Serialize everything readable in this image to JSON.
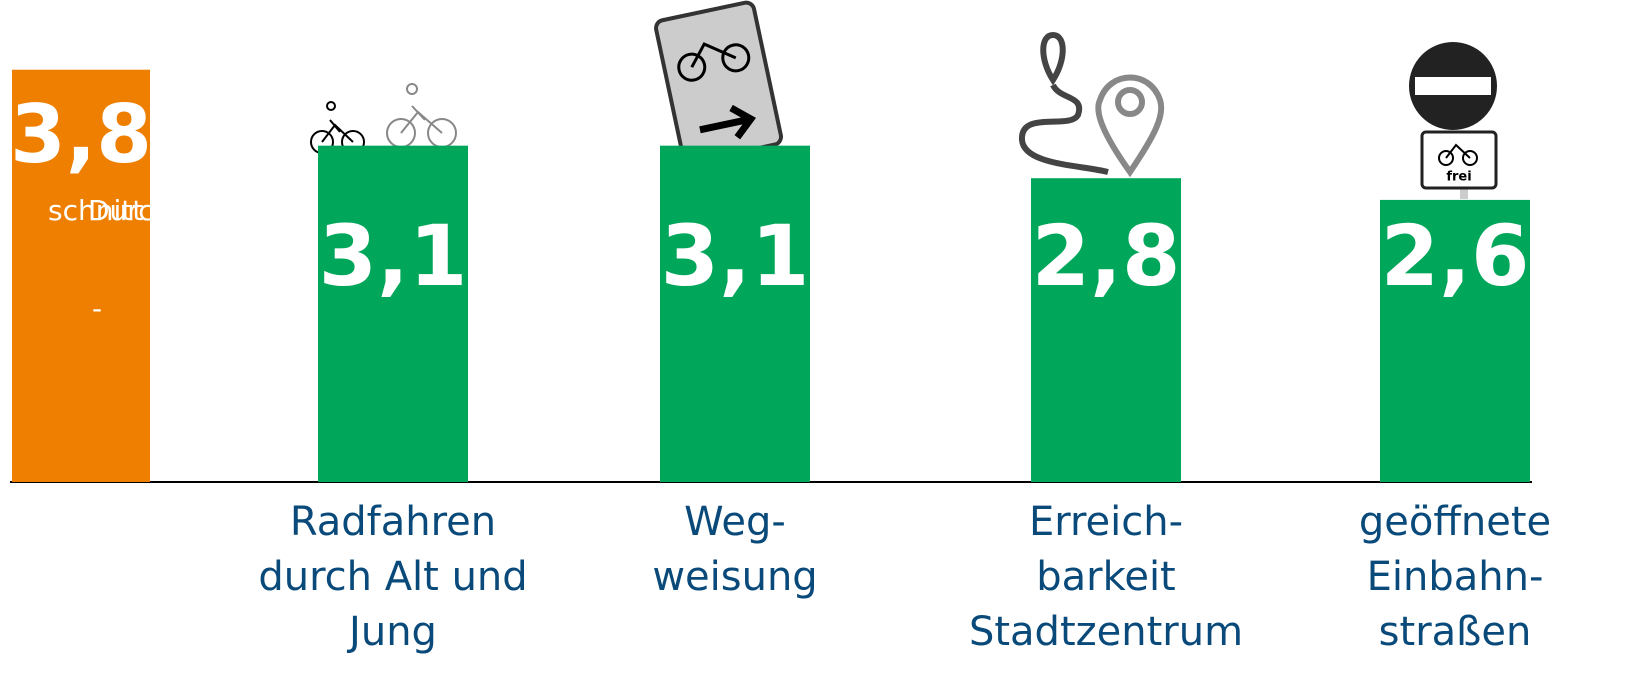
{
  "chart_data": {
    "type": "bar",
    "categories": [
      "Durch\nschnitt\n-",
      "Radfahren\ndurch Alt und\nJung",
      "Weg-\nweisung",
      "Erreich-\nbarkeit\nStadtzentrum",
      "geöffnete\nEinbahn-\nstraßen"
    ],
    "values": [
      3.8,
      3.1,
      3.1,
      2.8,
      2.6
    ],
    "value_labels": [
      "3,8",
      "3,1",
      "3,1",
      "2,8",
      "2,6"
    ],
    "colors": [
      "#ee7f00",
      "#00a65a",
      "#00a65a",
      "#00a65a",
      "#00a65a"
    ],
    "sign_text": "frei"
  }
}
